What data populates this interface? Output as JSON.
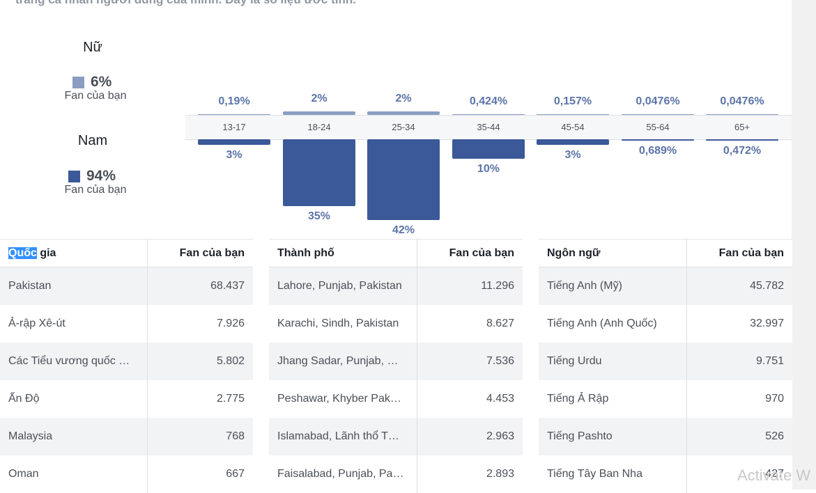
{
  "intro_text": "trang cá nhân người dùng của mình. Đây là số liệu ước tính.",
  "gender": {
    "female": {
      "title": "Nữ",
      "percent": "6%",
      "sub": "Fan của bạn",
      "color": "#8b9dc3"
    },
    "male": {
      "title": "Nam",
      "percent": "94%",
      "sub": "Fan của bạn",
      "color": "#3b5998"
    }
  },
  "age_chart": {
    "groups": [
      {
        "label": "13-17",
        "female": "0,19%",
        "male": "3%",
        "female_value": 0.19,
        "male_value": 3
      },
      {
        "label": "18-24",
        "female": "2%",
        "male": "35%",
        "female_value": 2,
        "male_value": 35
      },
      {
        "label": "25-34",
        "female": "2%",
        "male": "42%",
        "female_value": 2,
        "male_value": 42
      },
      {
        "label": "35-44",
        "female": "0,424%",
        "male": "10%",
        "female_value": 0.424,
        "male_value": 10
      },
      {
        "label": "45-54",
        "female": "0,157%",
        "male": "3%",
        "female_value": 0.157,
        "male_value": 3
      },
      {
        "label": "55-64",
        "female": "0,0476%",
        "male": "0,689%",
        "female_value": 0.0476,
        "male_value": 0.689
      },
      {
        "label": "65+",
        "female": "0,0476%",
        "male": "0,472%",
        "female_value": 0.0476,
        "male_value": 0.472
      }
    ]
  },
  "countries": {
    "header_highlight": "Quốc",
    "header_rest": " gia",
    "value_header": "Fan của bạn",
    "rows": [
      {
        "name": "Pakistan",
        "value": "68.437"
      },
      {
        "name": "Ả-rập Xê-út",
        "value": "7.926"
      },
      {
        "name": "Các Tiểu vương quốc …",
        "value": "5.802"
      },
      {
        "name": "Ấn Độ",
        "value": "2.775"
      },
      {
        "name": "Malaysia",
        "value": "768"
      },
      {
        "name": "Oman",
        "value": "667"
      }
    ]
  },
  "cities": {
    "header": "Thành phố",
    "value_header": "Fan của bạn",
    "rows": [
      {
        "name": "Lahore, Punjab, Pakistan",
        "value": "11.296"
      },
      {
        "name": "Karachi, Sindh, Pakistan",
        "value": "8.627"
      },
      {
        "name": "Jhang Sadar, Punjab, …",
        "value": "7.536"
      },
      {
        "name": "Peshawar, Khyber Pak…",
        "value": "4.453"
      },
      {
        "name": "Islamabad, Lãnh thổ T…",
        "value": "2.963"
      },
      {
        "name": "Faisalabad, Punjab, Pa…",
        "value": "2.893"
      }
    ]
  },
  "languages": {
    "header": "Ngôn ngữ",
    "value_header": "Fan của bạn",
    "rows": [
      {
        "name": "Tiếng Anh (Mỹ)",
        "value": "45.782"
      },
      {
        "name": "Tiếng Anh (Anh Quốc)",
        "value": "32.997"
      },
      {
        "name": "Tiếng Urdu",
        "value": "9.751"
      },
      {
        "name": "Tiếng Ả Rập",
        "value": "970"
      },
      {
        "name": "Tiếng Pashto",
        "value": "526"
      },
      {
        "name": "Tiếng Tây Ban Nha",
        "value": "427"
      }
    ]
  },
  "watermark": "Activate W"
}
